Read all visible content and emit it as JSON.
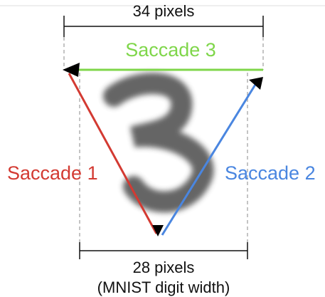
{
  "top_dimension": {
    "label": "34 pixels"
  },
  "saccades": [
    {
      "label": "Saccade 1"
    },
    {
      "label": "Saccade 2"
    },
    {
      "label": "Saccade 3"
    }
  ],
  "bottom_dimension": {
    "label": "28 pixels",
    "caption": "(MNIST digit width)"
  }
}
